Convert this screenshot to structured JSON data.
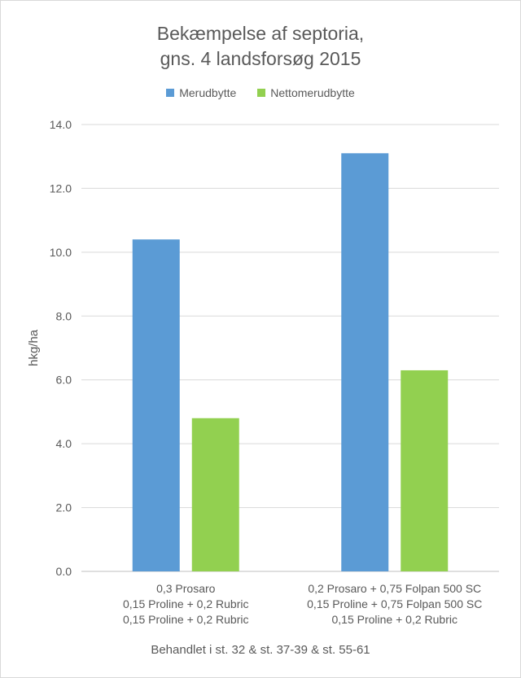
{
  "chart_data": {
    "type": "bar",
    "title": [
      "Bekæmpelse af septoria,",
      "gns. 4 landsforsøg 2015"
    ],
    "ylabel": "hkg/ha",
    "xlabel": "Behandlet i st. 32 & st. 37-39 & st. 55-61",
    "ylim": [
      0,
      14
    ],
    "yticks": [
      "0.0",
      "2.0",
      "4.0",
      "6.0",
      "8.0",
      "10.0",
      "12.0",
      "14.0"
    ],
    "grid": true,
    "legend_position": "top",
    "categories": [
      [
        "0,3 Prosaro",
        "0,15 Proline + 0,2 Rubric",
        "0,15 Proline + 0,2 Rubric"
      ],
      [
        "0,2 Prosaro + 0,75 Folpan 500 SC",
        "0,15 Proline + 0,75 Folpan 500 SC",
        "0,15 Proline + 0,2 Rubric"
      ]
    ],
    "series": [
      {
        "name": "Merudbytte",
        "color": "#5b9bd5",
        "values": [
          10.4,
          13.1
        ]
      },
      {
        "name": "Nettomerudbytte",
        "color": "#92d050",
        "values": [
          4.8,
          6.3
        ]
      }
    ]
  }
}
